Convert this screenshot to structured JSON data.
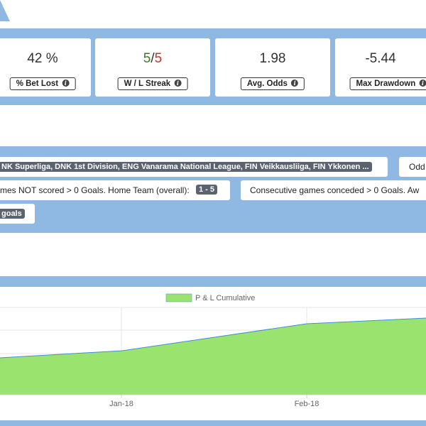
{
  "stats": [
    {
      "value": "42 %",
      "label": "% Bet Lost"
    },
    {
      "value_win": "5",
      "value_sep": "/",
      "value_loss": "5",
      "label": "W / L Streak"
    },
    {
      "value": "1.98",
      "label": "Avg. Odds"
    },
    {
      "value": "-5.44",
      "label": "Max Drawdown"
    }
  ],
  "filters": {
    "leagues_text": "NK Superliga, DNK 1st Division, ENG Vanarama National League, FIN Veikkausliiga, FIN Ykkonen ...",
    "odds_label": "Odd",
    "not_scored_text": "mes NOT scored > 0 Goals. Home Team (overall):",
    "not_scored_tag": "1 - 5",
    "conceded_text": "Consecutive games conceded > 0 Goals. Aw",
    "goals_tag": "goals"
  },
  "icons": {
    "info": "info-icon"
  },
  "colors": {
    "accent_blue": "#8fb8e2",
    "area_fill": "#9be36f",
    "area_line": "#3f8fd1",
    "win_green": "#3a7a2a",
    "loss_red": "#c9302c"
  },
  "chart_data": {
    "type": "area",
    "legend": "P & L Cumulative",
    "x_ticks": [
      "Jan-18",
      "Feb-18"
    ],
    "series": [
      {
        "name": "P & L Cumulative"
      }
    ],
    "grid": true,
    "legend_position": "top-center"
  }
}
